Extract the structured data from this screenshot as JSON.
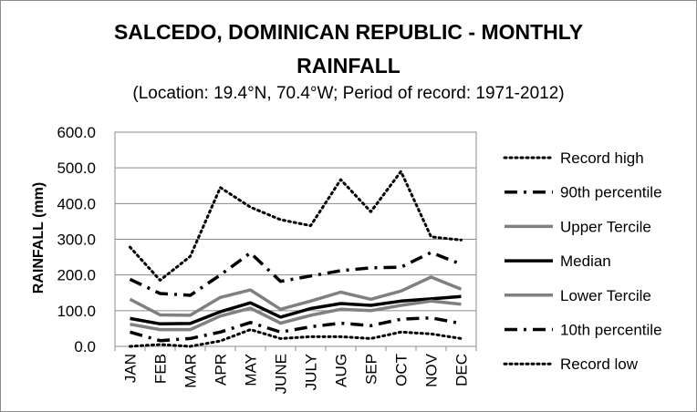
{
  "chart_data": {
    "type": "line",
    "title_line1": "SALCEDO, DOMINICAN REPUBLIC - MONTHLY",
    "title_line2": "RAINFALL",
    "subtitle": "(Location: 19.4°N, 70.4°W; Period of record: 1971-2012)",
    "ylabel": "RAINFALL (mm)",
    "xlabel": "",
    "ylim": [
      0,
      600
    ],
    "yticks": [
      0,
      100,
      200,
      300,
      400,
      500,
      600
    ],
    "ytick_labels": [
      "0.0",
      "100.0",
      "200.0",
      "300.0",
      "400.0",
      "500.0",
      "600.0"
    ],
    "categories": [
      "JAN",
      "FEB",
      "MAR",
      "APR",
      "MAY",
      "JUNE",
      "JULY",
      "AUG",
      "SEP",
      "OCT",
      "NOV",
      "DEC"
    ],
    "grid": true,
    "legend_position": "right",
    "series": [
      {
        "name": "Record high",
        "style": "dotted",
        "color": "#000000",
        "values": [
          278,
          185,
          252,
          445,
          390,
          355,
          338,
          467,
          377,
          490,
          307,
          298
        ]
      },
      {
        "name": "90th percentile",
        "style": "dashdot",
        "color": "#000000",
        "values": [
          188,
          148,
          143,
          200,
          262,
          182,
          197,
          212,
          220,
          222,
          263,
          230
        ]
      },
      {
        "name": "Upper Tercile",
        "style": "solid",
        "color": "#808080",
        "values": [
          132,
          88,
          87,
          137,
          158,
          104,
          127,
          152,
          132,
          155,
          194,
          160
        ]
      },
      {
        "name": "Median",
        "style": "solid",
        "color": "#000000",
        "values": [
          78,
          63,
          64,
          97,
          122,
          82,
          106,
          120,
          115,
          127,
          133,
          140
        ]
      },
      {
        "name": "Lower Tercile",
        "style": "solid",
        "color": "#808080",
        "values": [
          62,
          47,
          47,
          85,
          107,
          65,
          87,
          104,
          100,
          115,
          127,
          118
        ]
      },
      {
        "name": "10th percentile",
        "style": "dashdot",
        "color": "#000000",
        "values": [
          40,
          16,
          22,
          40,
          67,
          40,
          55,
          65,
          58,
          76,
          80,
          64
        ]
      },
      {
        "name": "Record low",
        "style": "dotted",
        "color": "#000000",
        "values": [
          0,
          5,
          0,
          15,
          47,
          22,
          27,
          27,
          22,
          40,
          35,
          22
        ]
      }
    ]
  }
}
